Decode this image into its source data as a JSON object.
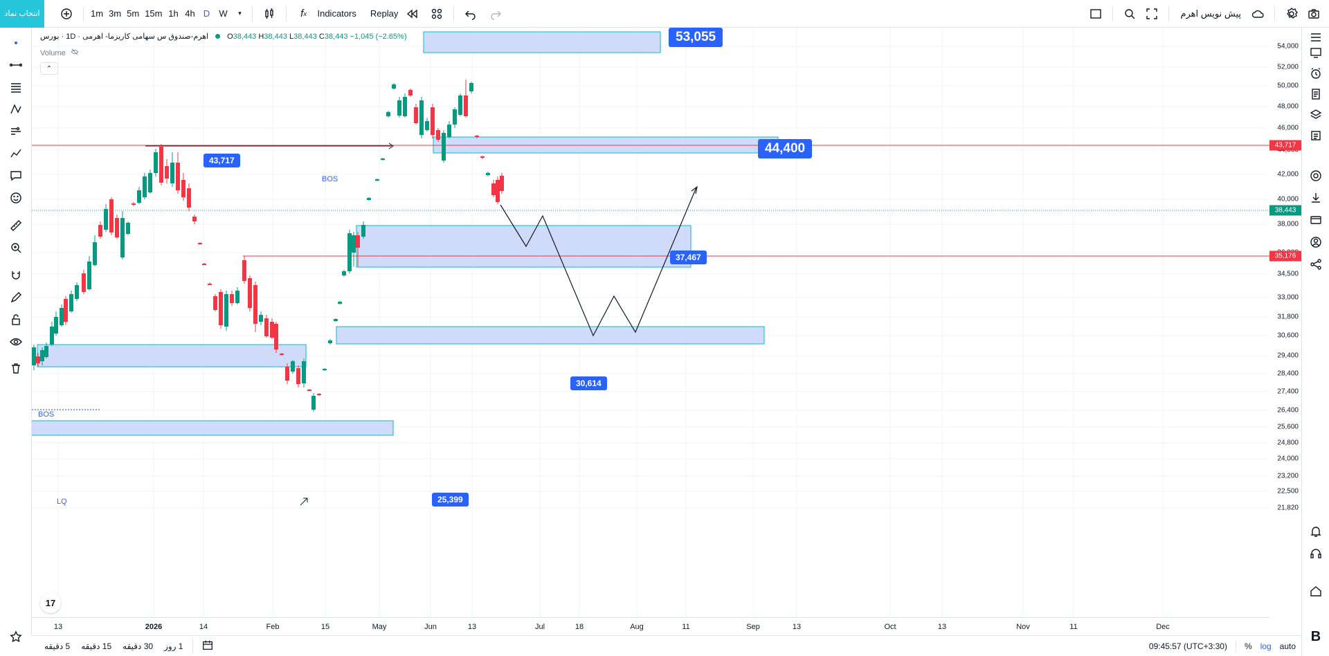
{
  "toolbar": {
    "symbol_button": "انتخاب نماد",
    "intervals": [
      "1m",
      "3m",
      "5m",
      "15m",
      "1h",
      "4h",
      "D",
      "W"
    ],
    "active_interval": "D",
    "indicators_label": "Indicators",
    "replay_label": "Replay",
    "publish_label": "پیش نویس اهرم"
  },
  "legend": {
    "symbol": "اهرم-صندوق س سهامی کاریزما- اهرمی · 1D · بورس",
    "open_label": "O",
    "open": "38,443",
    "high_label": "H",
    "high": "38,443",
    "low_label": "L",
    "low": "38,443",
    "close_label": "C",
    "close": "38,443",
    "change": "−1,045 (−2.65%)",
    "volume_label": "Volume"
  },
  "price_axis": {
    "labels": [
      "54,000",
      "52,000",
      "50,000",
      "48,000",
      "46,000",
      "44,000",
      "42,000",
      "40,000",
      "38,000",
      "36,000",
      "34,500",
      "33,000",
      "31,800",
      "30,600",
      "29,400",
      "28,400",
      "27,400",
      "26,400",
      "25,600",
      "24,800",
      "24,000",
      "23,200",
      "22,500",
      "21,820"
    ],
    "tags": [
      {
        "value": "43,717",
        "color": "#f23645"
      },
      {
        "value": "38,443",
        "color": "#089981"
      },
      {
        "value": "35,176",
        "color": "#f23645"
      }
    ]
  },
  "time_axis": {
    "labels": [
      "13",
      "2026",
      "14",
      "Feb",
      "15",
      "May",
      "Jun",
      "13",
      "Jul",
      "18",
      "Aug",
      "11",
      "Sep",
      "13",
      "Oct",
      "13",
      "Nov",
      "11",
      "Dec"
    ]
  },
  "annotations": {
    "label_43717": "43,717",
    "label_53055": "53,055",
    "label_44400": "44,400",
    "label_37467": "37,467",
    "label_30614": "30,614",
    "label_25399": "25,399",
    "bos_top": "BOS",
    "bos_left": "BOS",
    "lq": "LQ"
  },
  "bottom": {
    "ranges": [
      "5 دقیقه",
      "15 دقیقه",
      "30 دقیقه",
      "1 روز"
    ],
    "time": "09:45:57 (UTC+3:30)",
    "percent": "%",
    "log": "log",
    "auto": "auto"
  },
  "colors": {
    "up": "#089981",
    "down": "#f23645",
    "zone_fill": "#c7d5f7",
    "zone_stroke": "#26c6da",
    "accent": "#2962ff"
  }
}
